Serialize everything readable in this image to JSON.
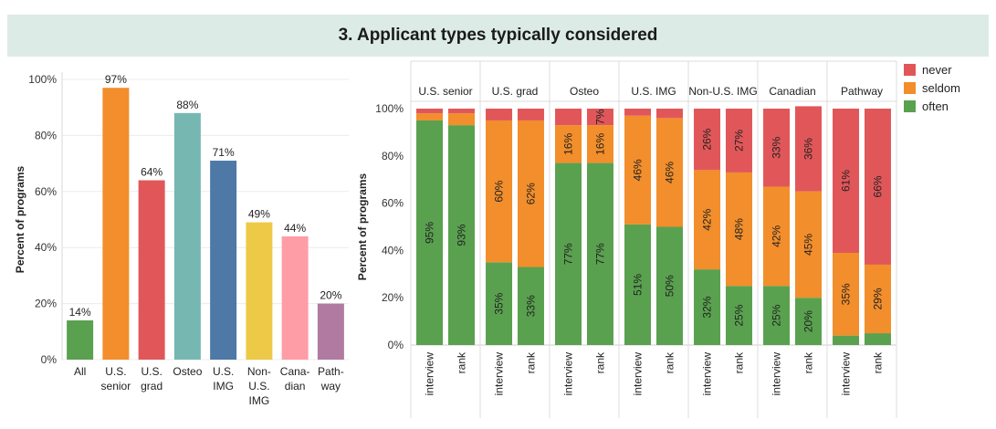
{
  "title": "3. Applicant types typically considered",
  "colors": {
    "banner": "#dcebe5",
    "never": "#e15759",
    "seldom": "#f28e2b",
    "often": "#59a14f"
  },
  "chart_data": [
    {
      "type": "bar",
      "ylabel": "Percent of programs",
      "ylim": [
        0,
        100
      ],
      "yticks": [
        "0%",
        "20%",
        "40%",
        "60%",
        "80%",
        "100%"
      ],
      "grid": true,
      "categories": [
        {
          "label": [
            "All"
          ],
          "value": 14,
          "value_label": "14%",
          "color": "#59a14f"
        },
        {
          "label": [
            "U.S.",
            "senior"
          ],
          "value": 97,
          "value_label": "97%",
          "color": "#f28e2b"
        },
        {
          "label": [
            "U.S.",
            "grad"
          ],
          "value": 64,
          "value_label": "64%",
          "color": "#e15759"
        },
        {
          "label": [
            "Osteo"
          ],
          "value": 88,
          "value_label": "88%",
          "color": "#76b7b2"
        },
        {
          "label": [
            "U.S.",
            "IMG"
          ],
          "value": 71,
          "value_label": "71%",
          "color": "#4e79a7"
        },
        {
          "label": [
            "Non-",
            "U.S.",
            "IMG"
          ],
          "value": 49,
          "value_label": "49%",
          "color": "#edc948"
        },
        {
          "label": [
            "Cana-",
            "dian"
          ],
          "value": 44,
          "value_label": "44%",
          "color": "#ff9da7"
        },
        {
          "label": [
            "Path-",
            "way"
          ],
          "value": 20,
          "value_label": "20%",
          "color": "#b07aa1"
        }
      ]
    },
    {
      "type": "bar",
      "stacked": true,
      "ylabel": "Percent of programs",
      "ylim": [
        0,
        100
      ],
      "yticks": [
        "0%",
        "20%",
        "40%",
        "60%",
        "80%",
        "100%"
      ],
      "legend": {
        "position": "top-right",
        "items": [
          {
            "name": "never",
            "color": "#e15759"
          },
          {
            "name": "seldom",
            "color": "#f28e2b"
          },
          {
            "name": "often",
            "color": "#59a14f"
          }
        ]
      },
      "groups": [
        {
          "name": "U.S. senior",
          "bars": [
            {
              "label": "interview",
              "often": 95,
              "seldom": 3,
              "never": 2,
              "labels": {
                "often": "95%",
                "seldom": "",
                "never": ""
              }
            },
            {
              "label": "rank",
              "often": 93,
              "seldom": 5,
              "never": 2,
              "labels": {
                "often": "93%",
                "seldom": "",
                "never": ""
              }
            }
          ]
        },
        {
          "name": "U.S. grad",
          "bars": [
            {
              "label": "interview",
              "often": 35,
              "seldom": 60,
              "never": 5,
              "labels": {
                "often": "35%",
                "seldom": "60%",
                "never": ""
              }
            },
            {
              "label": "rank",
              "often": 33,
              "seldom": 62,
              "never": 5,
              "labels": {
                "often": "33%",
                "seldom": "62%",
                "never": ""
              }
            }
          ]
        },
        {
          "name": "Osteo",
          "bars": [
            {
              "label": "interview",
              "often": 77,
              "seldom": 16,
              "never": 7,
              "labels": {
                "often": "77%",
                "seldom": "16%",
                "never": ""
              }
            },
            {
              "label": "rank",
              "often": 77,
              "seldom": 16,
              "never": 7,
              "labels": {
                "often": "77%",
                "seldom": "16%",
                "never": "7%"
              }
            }
          ]
        },
        {
          "name": "U.S. IMG",
          "bars": [
            {
              "label": "interview",
              "often": 51,
              "seldom": 46,
              "never": 3,
              "labels": {
                "often": "51%",
                "seldom": "46%",
                "never": ""
              }
            },
            {
              "label": "rank",
              "often": 50,
              "seldom": 46,
              "never": 4,
              "labels": {
                "often": "50%",
                "seldom": "46%",
                "never": ""
              }
            }
          ]
        },
        {
          "name": "Non-U.S. IMG",
          "bars": [
            {
              "label": "interview",
              "often": 32,
              "seldom": 42,
              "never": 26,
              "labels": {
                "often": "32%",
                "seldom": "42%",
                "never": "26%"
              }
            },
            {
              "label": "rank",
              "often": 25,
              "seldom": 48,
              "never": 27,
              "labels": {
                "often": "25%",
                "seldom": "48%",
                "never": "27%"
              }
            }
          ]
        },
        {
          "name": "Canadian",
          "bars": [
            {
              "label": "interview",
              "often": 25,
              "seldom": 42,
              "never": 33,
              "labels": {
                "often": "25%",
                "seldom": "42%",
                "never": "33%"
              }
            },
            {
              "label": "rank",
              "often": 20,
              "seldom": 45,
              "never": 36,
              "labels": {
                "often": "20%",
                "seldom": "45%",
                "never": "36%"
              }
            }
          ]
        },
        {
          "name": "Pathway",
          "bars": [
            {
              "label": "interview",
              "often": 4,
              "seldom": 35,
              "never": 61,
              "labels": {
                "often": "",
                "seldom": "35%",
                "never": "61%"
              }
            },
            {
              "label": "rank",
              "often": 5,
              "seldom": 29,
              "never": 66,
              "labels": {
                "often": "",
                "seldom": "29%",
                "never": "66%"
              }
            }
          ]
        }
      ]
    }
  ]
}
